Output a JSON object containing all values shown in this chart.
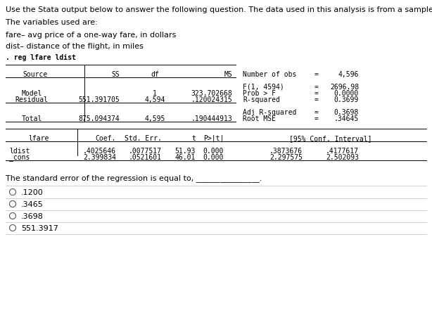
{
  "title_line1": "Use the Stata output below to answer the following question. The data used in this analysis is from a sample of airlines.",
  "title_line2": "The variables used are:",
  "var1": "fare– avg price of a one-way fare, in dollars",
  "var2": "dist– distance of the flight, in miles",
  "command": ". reg lfare ldist",
  "stats_labels": [
    "Number of obs",
    "F(1, 4594)",
    "Prob > F",
    "R-squared",
    "Adj R-squared",
    "Root MSE"
  ],
  "stats_values": [
    "4,596",
    "2696.98",
    "0.0000",
    "0.3699",
    "0.3698",
    ".34645"
  ],
  "coef_rows": [
    [
      "ldist",
      ".4025646",
      ".0077517",
      "51.93",
      "0.000",
      ".3873676",
      ".4177617"
    ],
    [
      "_cons",
      "2.399834",
      ".0521601",
      "46.01",
      "0.000",
      "2.297575",
      "2.502093"
    ]
  ],
  "question": "The standard error of the regression is equal to, ________________.",
  "options": [
    ".1200",
    ".3465",
    ".3698",
    "551.3917"
  ],
  "bg_color": "#ffffff",
  "text_color": "#000000",
  "mono_font": "DejaVu Sans Mono",
  "prop_font": "DejaVu Sans",
  "figw": 6.14,
  "figh": 4.65,
  "dpi": 100
}
